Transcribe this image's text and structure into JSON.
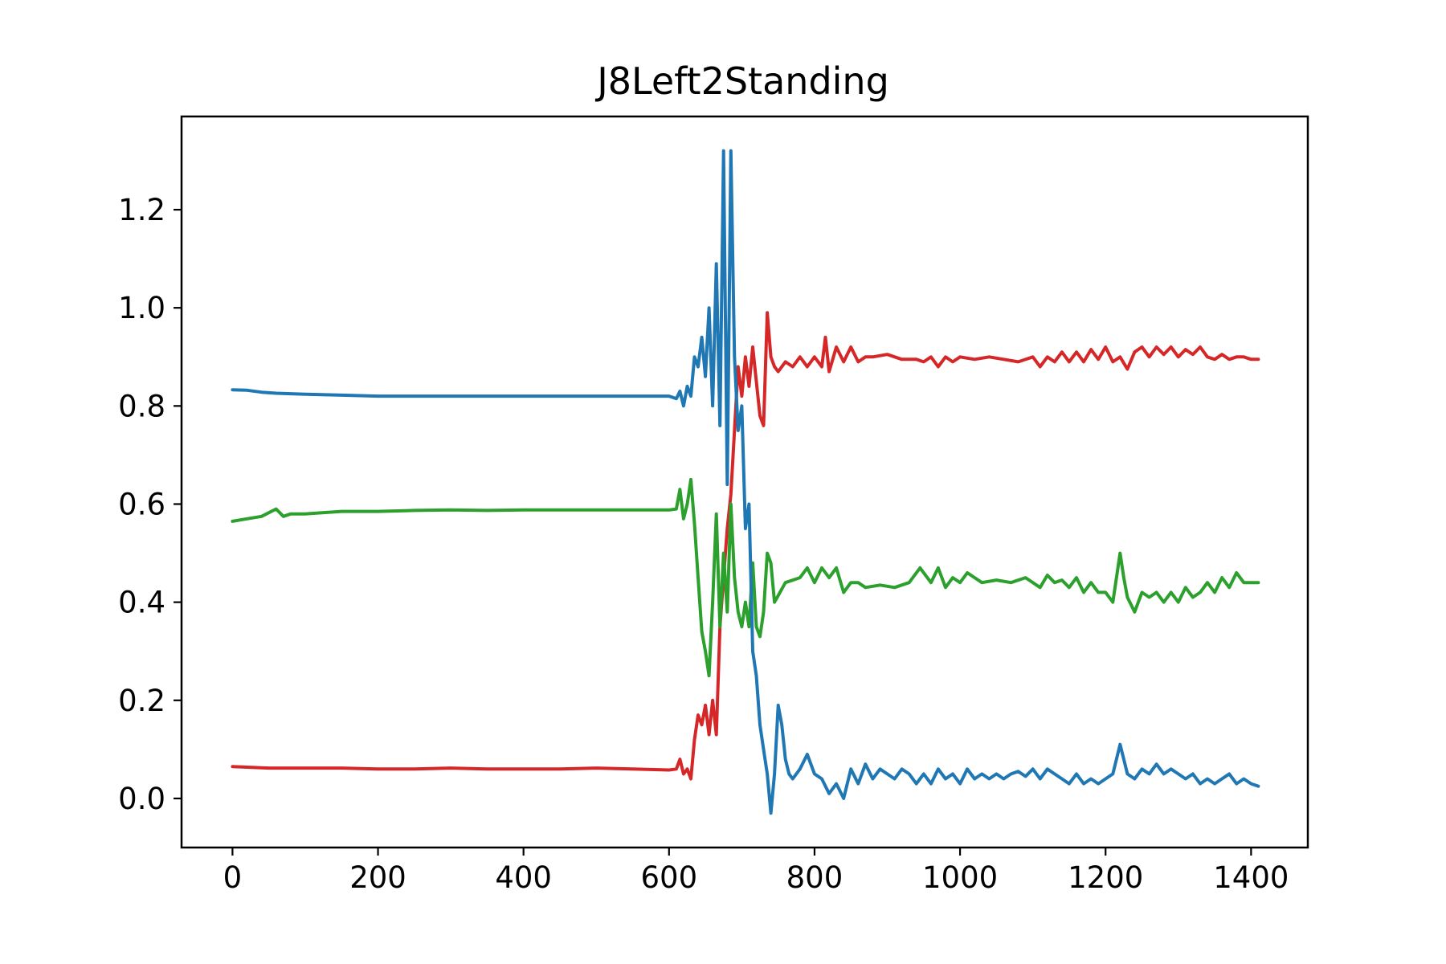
{
  "chart_data": {
    "type": "line",
    "title": "J8Left2Standing",
    "xlabel": "",
    "ylabel": "",
    "xlim": [
      -70,
      1478
    ],
    "ylim": [
      -0.1,
      1.39
    ],
    "x_ticks": [
      0,
      200,
      400,
      600,
      800,
      1000,
      1200,
      1400
    ],
    "x_tick_labels": [
      "0",
      "200",
      "400",
      "600",
      "800",
      "1000",
      "1200",
      "1400"
    ],
    "y_ticks": [
      0.0,
      0.2,
      0.4,
      0.6,
      0.8,
      1.0,
      1.2
    ],
    "y_tick_labels": [
      "0.0",
      "0.2",
      "0.4",
      "0.6",
      "0.8",
      "1.0",
      "1.2"
    ],
    "grid": false,
    "legend": "none",
    "series": [
      {
        "color": "#d62728",
        "points": [
          [
            0,
            0.065
          ],
          [
            50,
            0.062
          ],
          [
            100,
            0.062
          ],
          [
            150,
            0.062
          ],
          [
            200,
            0.06
          ],
          [
            250,
            0.06
          ],
          [
            300,
            0.062
          ],
          [
            350,
            0.06
          ],
          [
            400,
            0.06
          ],
          [
            450,
            0.06
          ],
          [
            500,
            0.062
          ],
          [
            550,
            0.06
          ],
          [
            600,
            0.058
          ],
          [
            610,
            0.06
          ],
          [
            615,
            0.08
          ],
          [
            620,
            0.05
          ],
          [
            625,
            0.06
          ],
          [
            630,
            0.04
          ],
          [
            635,
            0.12
          ],
          [
            640,
            0.17
          ],
          [
            645,
            0.15
          ],
          [
            650,
            0.19
          ],
          [
            655,
            0.13
          ],
          [
            660,
            0.2
          ],
          [
            665,
            0.13
          ],
          [
            670,
            0.35
          ],
          [
            675,
            0.45
          ],
          [
            680,
            0.55
          ],
          [
            685,
            0.62
          ],
          [
            690,
            0.75
          ],
          [
            695,
            0.88
          ],
          [
            700,
            0.82
          ],
          [
            705,
            0.9
          ],
          [
            710,
            0.84
          ],
          [
            715,
            0.92
          ],
          [
            720,
            0.85
          ],
          [
            725,
            0.78
          ],
          [
            730,
            0.76
          ],
          [
            735,
            0.99
          ],
          [
            740,
            0.9
          ],
          [
            745,
            0.88
          ],
          [
            750,
            0.87
          ],
          [
            760,
            0.89
          ],
          [
            770,
            0.88
          ],
          [
            780,
            0.9
          ],
          [
            790,
            0.88
          ],
          [
            800,
            0.9
          ],
          [
            810,
            0.88
          ],
          [
            815,
            0.94
          ],
          [
            820,
            0.87
          ],
          [
            830,
            0.92
          ],
          [
            840,
            0.89
          ],
          [
            850,
            0.92
          ],
          [
            860,
            0.89
          ],
          [
            870,
            0.9
          ],
          [
            880,
            0.9
          ],
          [
            900,
            0.905
          ],
          [
            920,
            0.895
          ],
          [
            940,
            0.895
          ],
          [
            950,
            0.89
          ],
          [
            960,
            0.9
          ],
          [
            970,
            0.88
          ],
          [
            980,
            0.9
          ],
          [
            990,
            0.89
          ],
          [
            1000,
            0.9
          ],
          [
            1020,
            0.895
          ],
          [
            1040,
            0.9
          ],
          [
            1060,
            0.895
          ],
          [
            1080,
            0.89
          ],
          [
            1100,
            0.9
          ],
          [
            1110,
            0.88
          ],
          [
            1120,
            0.9
          ],
          [
            1130,
            0.89
          ],
          [
            1140,
            0.91
          ],
          [
            1150,
            0.89
          ],
          [
            1160,
            0.91
          ],
          [
            1170,
            0.89
          ],
          [
            1180,
            0.915
          ],
          [
            1190,
            0.895
          ],
          [
            1200,
            0.92
          ],
          [
            1210,
            0.89
          ],
          [
            1220,
            0.9
          ],
          [
            1230,
            0.875
          ],
          [
            1240,
            0.91
          ],
          [
            1250,
            0.92
          ],
          [
            1260,
            0.9
          ],
          [
            1270,
            0.92
          ],
          [
            1280,
            0.905
          ],
          [
            1290,
            0.92
          ],
          [
            1300,
            0.9
          ],
          [
            1310,
            0.915
          ],
          [
            1320,
            0.905
          ],
          [
            1330,
            0.92
          ],
          [
            1340,
            0.9
          ],
          [
            1350,
            0.895
          ],
          [
            1360,
            0.905
          ],
          [
            1370,
            0.895
          ],
          [
            1380,
            0.9
          ],
          [
            1390,
            0.9
          ],
          [
            1400,
            0.895
          ],
          [
            1410,
            0.895
          ]
        ]
      },
      {
        "color": "#2ca02c",
        "points": [
          [
            0,
            0.565
          ],
          [
            20,
            0.57
          ],
          [
            40,
            0.575
          ],
          [
            60,
            0.59
          ],
          [
            70,
            0.575
          ],
          [
            80,
            0.58
          ],
          [
            100,
            0.58
          ],
          [
            150,
            0.585
          ],
          [
            200,
            0.585
          ],
          [
            250,
            0.587
          ],
          [
            300,
            0.588
          ],
          [
            350,
            0.587
          ],
          [
            400,
            0.588
          ],
          [
            450,
            0.588
          ],
          [
            500,
            0.588
          ],
          [
            550,
            0.588
          ],
          [
            580,
            0.588
          ],
          [
            600,
            0.588
          ],
          [
            610,
            0.59
          ],
          [
            615,
            0.63
          ],
          [
            620,
            0.57
          ],
          [
            625,
            0.6
          ],
          [
            630,
            0.65
          ],
          [
            635,
            0.56
          ],
          [
            640,
            0.45
          ],
          [
            645,
            0.34
          ],
          [
            650,
            0.3
          ],
          [
            655,
            0.25
          ],
          [
            660,
            0.4
          ],
          [
            665,
            0.58
          ],
          [
            670,
            0.35
          ],
          [
            675,
            0.5
          ],
          [
            680,
            0.38
          ],
          [
            685,
            0.6
          ],
          [
            690,
            0.45
          ],
          [
            695,
            0.38
          ],
          [
            700,
            0.35
          ],
          [
            705,
            0.4
          ],
          [
            710,
            0.35
          ],
          [
            715,
            0.48
          ],
          [
            720,
            0.35
          ],
          [
            725,
            0.33
          ],
          [
            730,
            0.38
          ],
          [
            735,
            0.5
          ],
          [
            740,
            0.48
          ],
          [
            745,
            0.4
          ],
          [
            760,
            0.44
          ],
          [
            780,
            0.45
          ],
          [
            790,
            0.47
          ],
          [
            800,
            0.44
          ],
          [
            810,
            0.47
          ],
          [
            820,
            0.45
          ],
          [
            830,
            0.47
          ],
          [
            840,
            0.42
          ],
          [
            850,
            0.44
          ],
          [
            860,
            0.44
          ],
          [
            870,
            0.43
          ],
          [
            890,
            0.435
          ],
          [
            910,
            0.43
          ],
          [
            930,
            0.44
          ],
          [
            945,
            0.47
          ],
          [
            960,
            0.44
          ],
          [
            970,
            0.47
          ],
          [
            980,
            0.43
          ],
          [
            990,
            0.45
          ],
          [
            1000,
            0.44
          ],
          [
            1010,
            0.46
          ],
          [
            1030,
            0.44
          ],
          [
            1050,
            0.445
          ],
          [
            1070,
            0.44
          ],
          [
            1090,
            0.45
          ],
          [
            1110,
            0.43
          ],
          [
            1120,
            0.455
          ],
          [
            1130,
            0.44
          ],
          [
            1140,
            0.445
          ],
          [
            1150,
            0.43
          ],
          [
            1160,
            0.45
          ],
          [
            1170,
            0.42
          ],
          [
            1180,
            0.44
          ],
          [
            1190,
            0.42
          ],
          [
            1200,
            0.42
          ],
          [
            1210,
            0.4
          ],
          [
            1220,
            0.5
          ],
          [
            1225,
            0.45
          ],
          [
            1230,
            0.41
          ],
          [
            1240,
            0.38
          ],
          [
            1250,
            0.42
          ],
          [
            1260,
            0.41
          ],
          [
            1270,
            0.42
          ],
          [
            1280,
            0.4
          ],
          [
            1290,
            0.42
          ],
          [
            1300,
            0.4
          ],
          [
            1310,
            0.43
          ],
          [
            1320,
            0.41
          ],
          [
            1330,
            0.42
          ],
          [
            1340,
            0.44
          ],
          [
            1350,
            0.42
          ],
          [
            1360,
            0.45
          ],
          [
            1370,
            0.43
          ],
          [
            1380,
            0.46
          ],
          [
            1390,
            0.44
          ],
          [
            1400,
            0.44
          ],
          [
            1410,
            0.44
          ]
        ]
      },
      {
        "color": "#1f77b4",
        "points": [
          [
            0,
            0.833
          ],
          [
            20,
            0.832
          ],
          [
            40,
            0.828
          ],
          [
            60,
            0.826
          ],
          [
            100,
            0.824
          ],
          [
            150,
            0.822
          ],
          [
            200,
            0.82
          ],
          [
            250,
            0.82
          ],
          [
            300,
            0.82
          ],
          [
            350,
            0.82
          ],
          [
            400,
            0.82
          ],
          [
            450,
            0.82
          ],
          [
            500,
            0.82
          ],
          [
            550,
            0.82
          ],
          [
            600,
            0.82
          ],
          [
            610,
            0.815
          ],
          [
            615,
            0.83
          ],
          [
            620,
            0.8
          ],
          [
            625,
            0.84
          ],
          [
            630,
            0.82
          ],
          [
            635,
            0.9
          ],
          [
            640,
            0.88
          ],
          [
            645,
            0.94
          ],
          [
            650,
            0.86
          ],
          [
            655,
            1.0
          ],
          [
            660,
            0.8
          ],
          [
            665,
            1.09
          ],
          [
            670,
            0.76
          ],
          [
            675,
            1.32
          ],
          [
            680,
            0.64
          ],
          [
            685,
            1.32
          ],
          [
            690,
            0.9
          ],
          [
            695,
            0.75
          ],
          [
            700,
            0.8
          ],
          [
            705,
            0.55
          ],
          [
            710,
            0.6
          ],
          [
            715,
            0.3
          ],
          [
            720,
            0.25
          ],
          [
            725,
            0.15
          ],
          [
            730,
            0.1
          ],
          [
            735,
            0.05
          ],
          [
            740,
            -0.03
          ],
          [
            745,
            0.05
          ],
          [
            750,
            0.19
          ],
          [
            755,
            0.15
          ],
          [
            760,
            0.08
          ],
          [
            765,
            0.05
          ],
          [
            770,
            0.04
          ],
          [
            780,
            0.06
          ],
          [
            790,
            0.09
          ],
          [
            800,
            0.05
          ],
          [
            810,
            0.04
          ],
          [
            820,
            0.01
          ],
          [
            830,
            0.03
          ],
          [
            840,
            0.0
          ],
          [
            850,
            0.06
          ],
          [
            860,
            0.03
          ],
          [
            870,
            0.07
          ],
          [
            880,
            0.04
          ],
          [
            890,
            0.06
          ],
          [
            900,
            0.05
          ],
          [
            910,
            0.04
          ],
          [
            920,
            0.06
          ],
          [
            930,
            0.05
          ],
          [
            940,
            0.03
          ],
          [
            950,
            0.05
          ],
          [
            960,
            0.03
          ],
          [
            970,
            0.06
          ],
          [
            980,
            0.04
          ],
          [
            990,
            0.05
          ],
          [
            1000,
            0.03
          ],
          [
            1010,
            0.06
          ],
          [
            1020,
            0.04
          ],
          [
            1030,
            0.05
          ],
          [
            1040,
            0.04
          ],
          [
            1050,
            0.05
          ],
          [
            1060,
            0.04
          ],
          [
            1070,
            0.05
          ],
          [
            1080,
            0.055
          ],
          [
            1090,
            0.045
          ],
          [
            1100,
            0.06
          ],
          [
            1110,
            0.04
          ],
          [
            1120,
            0.06
          ],
          [
            1130,
            0.05
          ],
          [
            1140,
            0.04
          ],
          [
            1150,
            0.03
          ],
          [
            1160,
            0.05
          ],
          [
            1170,
            0.03
          ],
          [
            1180,
            0.04
          ],
          [
            1190,
            0.03
          ],
          [
            1200,
            0.04
          ],
          [
            1210,
            0.05
          ],
          [
            1220,
            0.11
          ],
          [
            1225,
            0.08
          ],
          [
            1230,
            0.05
          ],
          [
            1240,
            0.04
          ],
          [
            1250,
            0.06
          ],
          [
            1260,
            0.05
          ],
          [
            1270,
            0.07
          ],
          [
            1280,
            0.05
          ],
          [
            1290,
            0.06
          ],
          [
            1300,
            0.05
          ],
          [
            1310,
            0.04
          ],
          [
            1320,
            0.05
          ],
          [
            1330,
            0.03
          ],
          [
            1340,
            0.04
          ],
          [
            1350,
            0.03
          ],
          [
            1360,
            0.04
          ],
          [
            1370,
            0.05
          ],
          [
            1380,
            0.03
          ],
          [
            1390,
            0.04
          ],
          [
            1400,
            0.03
          ],
          [
            1410,
            0.025
          ]
        ]
      }
    ]
  }
}
